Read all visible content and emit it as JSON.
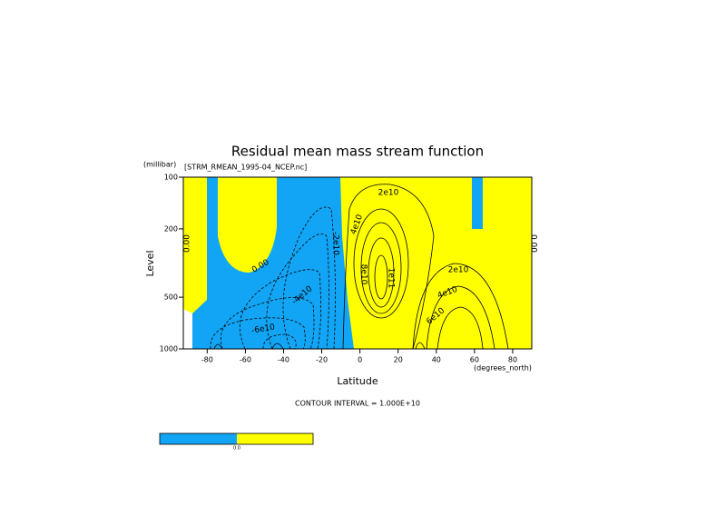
{
  "chart_data": {
    "type": "contour",
    "title": "Residual mean mass stream function",
    "subtitle": "[STRM_RMEAN_1995-04_NCEP.nc]",
    "xlabel": "Latitude",
    "xunits": "(degrees_north)",
    "ylabel": "Level",
    "yunits": "(millibar)",
    "xlim": [
      -92.5,
      90
    ],
    "xticks": [
      -80,
      -60,
      -40,
      -20,
      0,
      20,
      40,
      60,
      80
    ],
    "ylim": [
      1000,
      100
    ],
    "yticks": [
      100,
      200,
      500,
      1000
    ],
    "log_y": true,
    "negative_color": "#12a5f5",
    "positive_color": "#ffff00",
    "footnote": "CONTOUR INTERVAL = 1.000E+10",
    "contour_labels": [
      "2e10",
      "4e10",
      "0.00",
      "-2e10",
      "-4e10",
      "-6e10",
      "2e10",
      "4e10",
      "6e10",
      "0.00",
      "0.00",
      "8e10",
      "1e11"
    ],
    "colorbar_labels": [
      "0.0"
    ]
  }
}
